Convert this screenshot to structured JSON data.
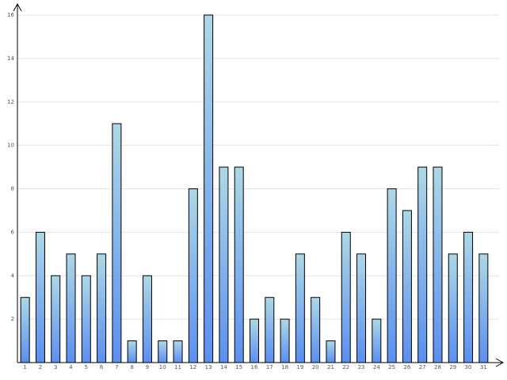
{
  "chart_data": {
    "type": "bar",
    "categories": [
      "1",
      "2",
      "3",
      "4",
      "5",
      "6",
      "7",
      "8",
      "9",
      "10",
      "11",
      "12",
      "13",
      "14",
      "15",
      "16",
      "17",
      "18",
      "19",
      "20",
      "21",
      "22",
      "23",
      "24",
      "25",
      "26",
      "27",
      "28",
      "29",
      "30",
      "31"
    ],
    "values": [
      3,
      6,
      4,
      5,
      4,
      5,
      11,
      1,
      4,
      1,
      1,
      8,
      16,
      9,
      9,
      2,
      3,
      2,
      5,
      3,
      1,
      6,
      5,
      2,
      8,
      7,
      9,
      9,
      5,
      6,
      5
    ],
    "ylim": [
      0,
      16
    ],
    "yticks": [
      2,
      4,
      6,
      8,
      10,
      12,
      14,
      16
    ],
    "grid": true,
    "color_top": "#add8e6",
    "color_bottom": "#5b8ff0"
  }
}
